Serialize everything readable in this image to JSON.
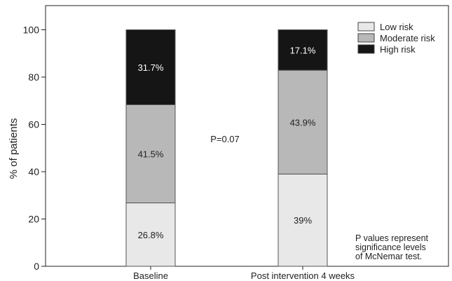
{
  "chart_data": {
    "type": "bar",
    "stacked": true,
    "categories": [
      "Baseline",
      "Post intervention 4 weeks"
    ],
    "series": [
      {
        "name": "Low risk",
        "values": [
          26.8,
          39
        ],
        "labels": [
          "26.8%",
          "39%"
        ],
        "color": "#e8e8e8",
        "label_color": "#222222"
      },
      {
        "name": "Moderate risk",
        "values": [
          41.5,
          43.9
        ],
        "labels": [
          "41.5%",
          "43.9%"
        ],
        "color": "#b8b8b8",
        "label_color": "#222222"
      },
      {
        "name": "High risk",
        "values": [
          31.7,
          17.1
        ],
        "labels": [
          "31.7%",
          "17.1%"
        ],
        "color": "#151515",
        "label_color": "#ffffff"
      }
    ],
    "title": "",
    "xlabel": "",
    "ylabel": "% of patients",
    "ylim": [
      0,
      100
    ],
    "yticks": [
      0,
      20,
      40,
      60,
      80,
      100
    ],
    "grid": false,
    "legend_position": "top-right",
    "annotations": {
      "p_value": "P=0.07",
      "note": [
        "P values represent",
        "significance levels",
        "of McNemar test."
      ]
    }
  }
}
